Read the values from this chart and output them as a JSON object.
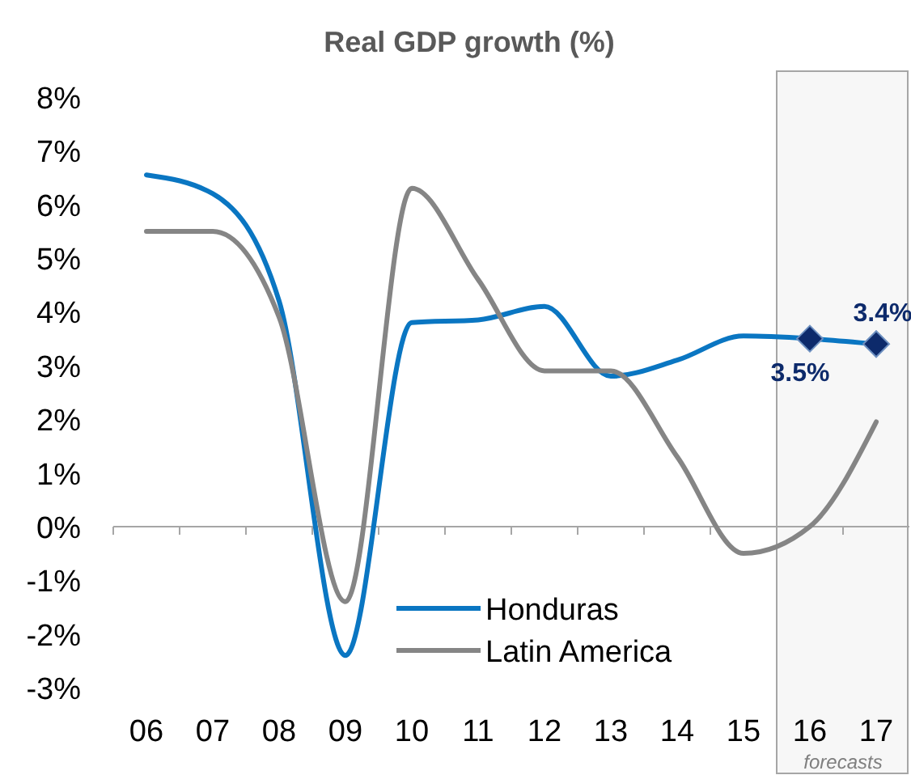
{
  "chart_data": {
    "type": "line",
    "title": "Real GDP growth (%)",
    "categories": [
      "06",
      "07",
      "08",
      "09",
      "10",
      "11",
      "12",
      "13",
      "14",
      "15",
      "16",
      "17"
    ],
    "series": [
      {
        "name": "Honduras",
        "color": "#0a76c2",
        "values": [
          6.55,
          6.2,
          4.2,
          -2.4,
          3.8,
          3.85,
          4.1,
          2.8,
          3.1,
          3.55,
          3.5,
          3.4
        ]
      },
      {
        "name": "Latin America",
        "color": "#858585",
        "values": [
          5.5,
          5.5,
          3.9,
          -1.4,
          6.3,
          4.6,
          2.9,
          2.9,
          1.3,
          -0.5,
          0.0,
          1.95
        ]
      },
      {
        "type": "scatter",
        "color": "#0d2a6b",
        "x": [
          "16",
          "17"
        ],
        "values": [
          3.5,
          3.4
        ],
        "value_labels": [
          "3.5%",
          "3.4%"
        ],
        "marker": "diamond"
      }
    ],
    "ylim": [
      -3,
      8
    ],
    "yticks": [
      {
        "value": -3,
        "label": "-3%"
      },
      {
        "value": -2,
        "label": "-2%"
      },
      {
        "value": -1,
        "label": "-1%"
      },
      {
        "value": 0,
        "label": "0%"
      },
      {
        "value": 1,
        "label": "1%"
      },
      {
        "value": 2,
        "label": "2%"
      },
      {
        "value": 3,
        "label": "3%"
      },
      {
        "value": 4,
        "label": "4%"
      },
      {
        "value": 5,
        "label": "5%"
      },
      {
        "value": 6,
        "label": "6%"
      },
      {
        "value": 7,
        "label": "7%"
      },
      {
        "value": 8,
        "label": "8%"
      }
    ],
    "bands": [
      {
        "axis": "x",
        "from": "16",
        "to": "17",
        "label": "forecasts",
        "color": "#f7f7f7"
      }
    ],
    "legend": "bottom"
  }
}
